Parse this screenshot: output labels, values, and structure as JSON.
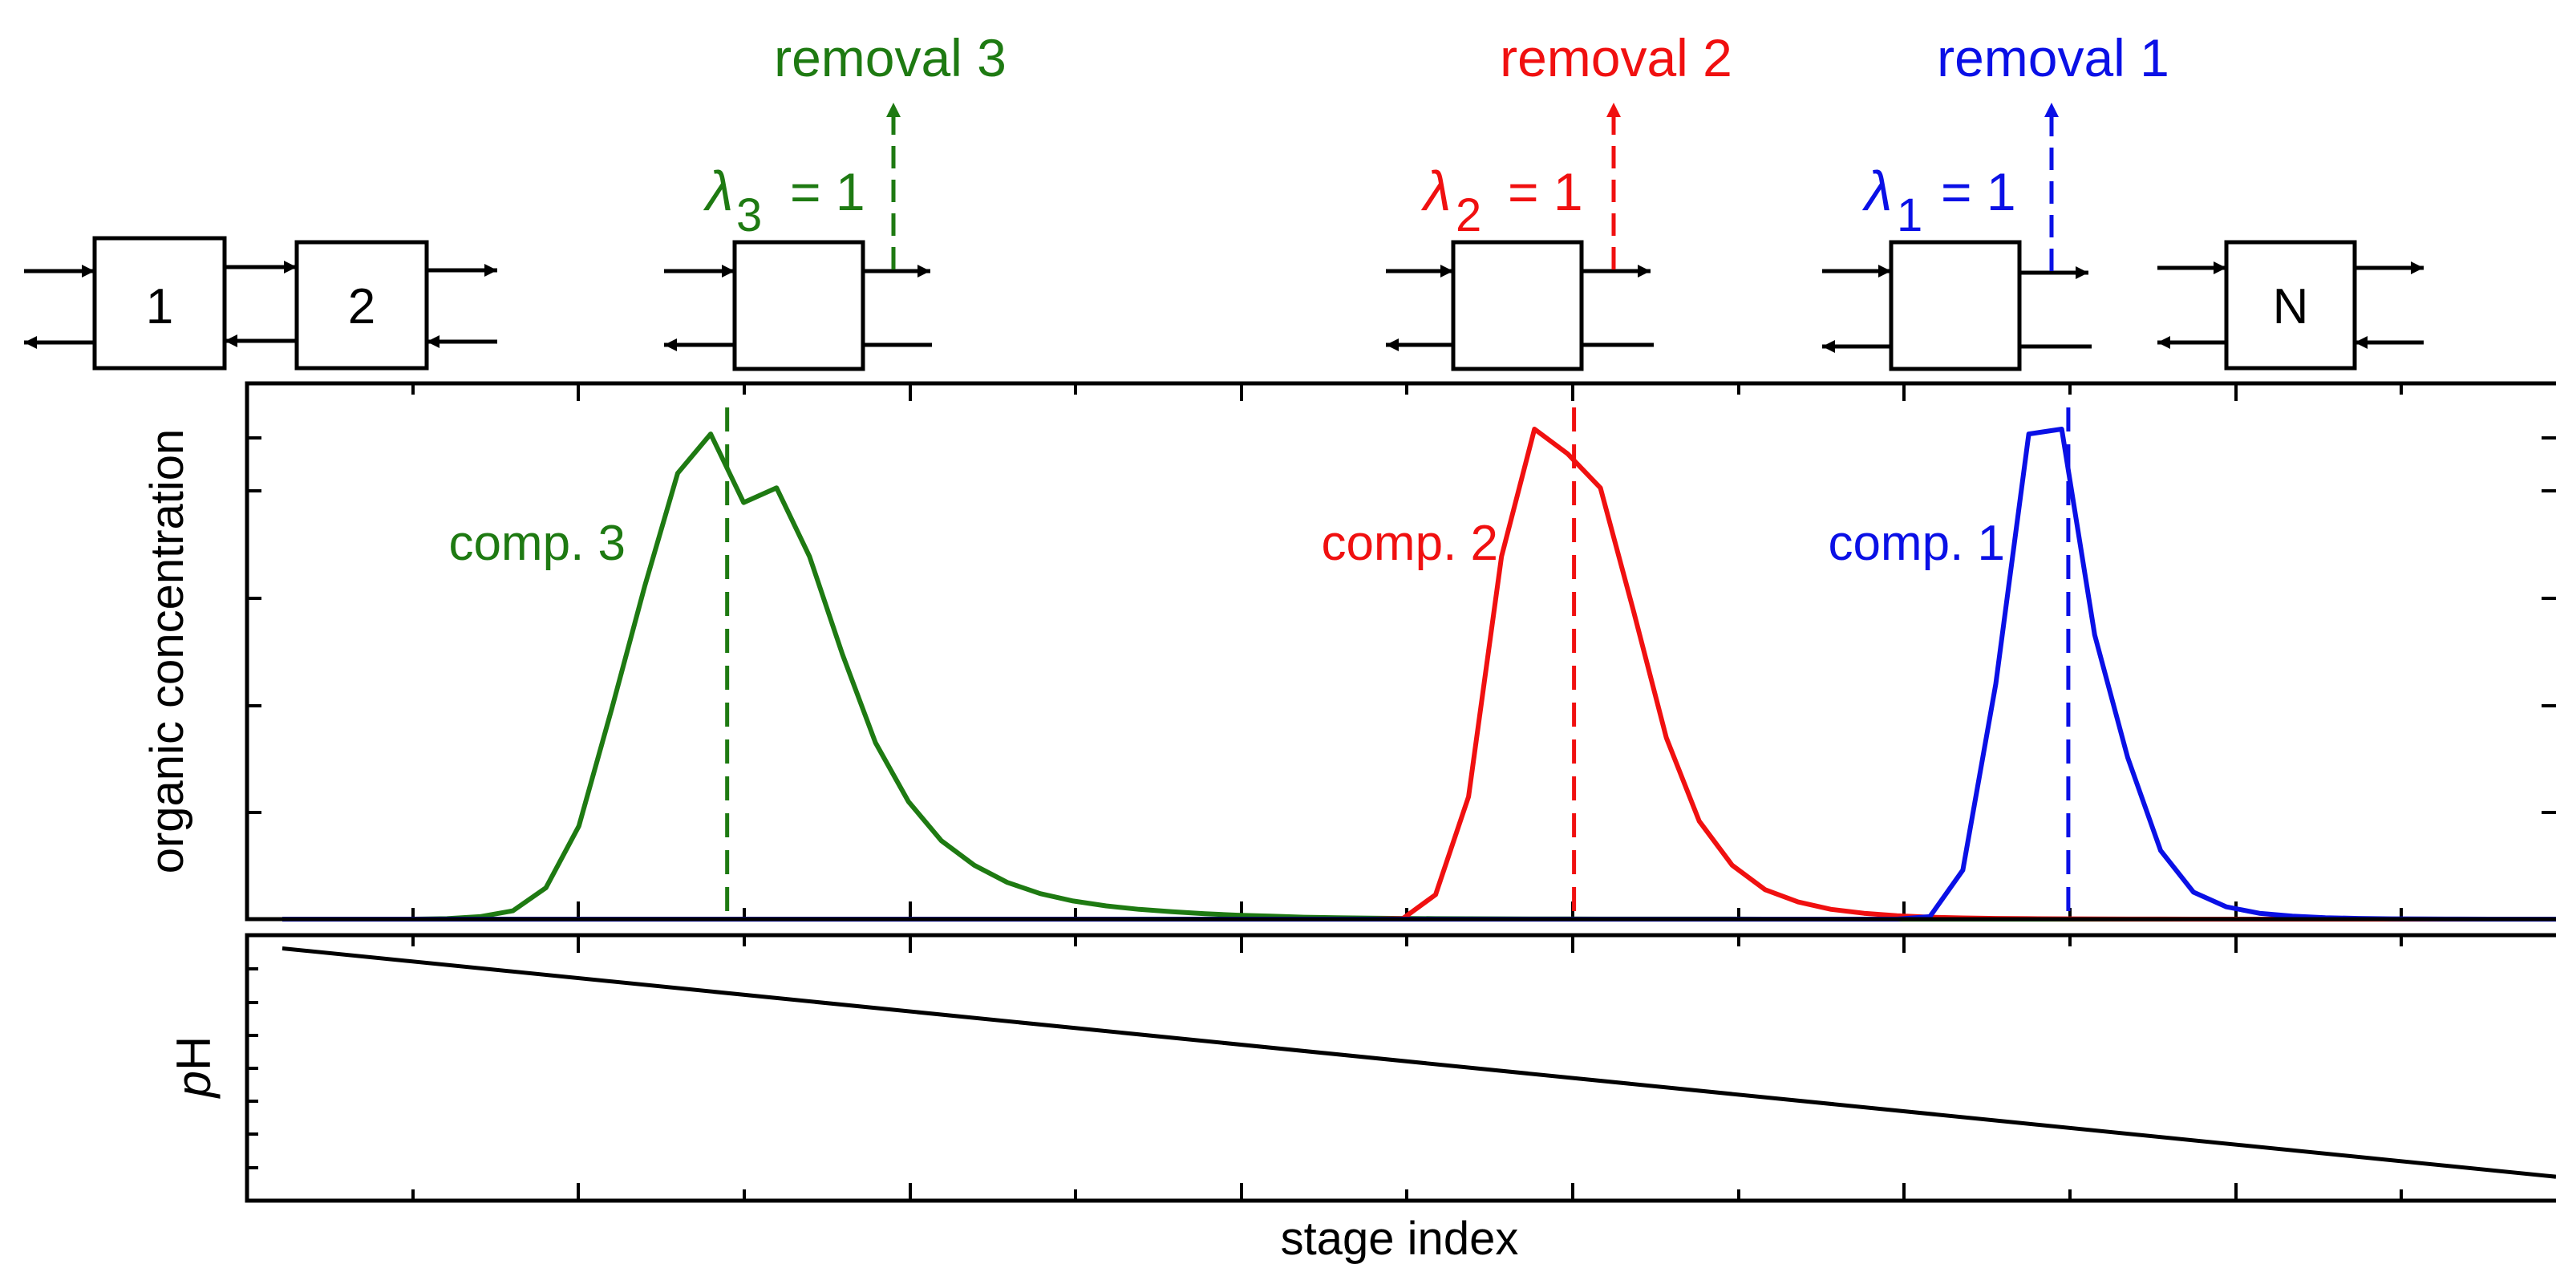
{
  "colors": {
    "comp1": "#0a10e6",
    "comp2": "#f01010",
    "comp3": "#1e7a12",
    "black": "#000000"
  },
  "stages": {
    "first": "1",
    "second": "2",
    "last": "N"
  },
  "removals": [
    {
      "label": "removal 3",
      "lambda_symbol": "λ",
      "lambda_sub": "3",
      "lambda_eq": "= 1"
    },
    {
      "label": "removal 2",
      "lambda_symbol": "λ",
      "lambda_sub": "2",
      "lambda_eq": "= 1"
    },
    {
      "label": "removal 1",
      "lambda_symbol": "λ",
      "lambda_sub": "1",
      "lambda_eq": "= 1"
    }
  ],
  "chart_data": [
    {
      "type": "line",
      "ylabel": "organic concentration",
      "xlabel": "",
      "series": [
        {
          "name": "comp. 3",
          "color": "#1e7a12",
          "x": [
            0,
            1,
            2,
            3,
            4,
            5,
            6,
            7,
            8,
            9,
            10,
            11,
            12,
            13,
            14,
            15,
            16,
            17,
            18,
            19,
            20,
            21,
            22,
            23,
            24,
            25,
            26,
            27,
            28,
            29,
            30,
            31,
            32,
            33,
            34,
            35,
            36,
            37,
            38,
            39,
            40,
            41,
            42,
            43,
            44,
            45,
            46,
            47,
            48,
            49,
            50,
            51,
            52,
            53,
            54,
            55,
            56,
            57,
            58,
            59,
            60,
            61,
            62,
            63,
            64,
            65,
            66,
            67,
            68,
            69
          ],
          "y": [
            0,
            0,
            0,
            0,
            0,
            0.001,
            0.005,
            0.017,
            0.064,
            0.19,
            0.43,
            0.68,
            0.91,
            0.99,
            0.85,
            0.88,
            0.74,
            0.54,
            0.36,
            0.24,
            0.16,
            0.11,
            0.075,
            0.052,
            0.037,
            0.027,
            0.02,
            0.015,
            0.011,
            0.008,
            0.006,
            0.004,
            0.003,
            0.002,
            0.0015,
            0.001,
            0.0008,
            0.0006,
            0.0004,
            0.0003,
            0.0002,
            0.0002,
            0.0001,
            0.0001,
            0.0001,
            0,
            0,
            0,
            0,
            0,
            0,
            0,
            0,
            0,
            0,
            0,
            0,
            0,
            0,
            0,
            0,
            0,
            0,
            0,
            0,
            0,
            0,
            0,
            0,
            0
          ],
          "removal_stage": 13.5
        },
        {
          "name": "comp. 2",
          "color": "#f01010",
          "x": [
            0,
            1,
            2,
            3,
            4,
            5,
            6,
            7,
            8,
            9,
            10,
            11,
            12,
            13,
            14,
            15,
            16,
            17,
            18,
            19,
            20,
            21,
            22,
            23,
            24,
            25,
            26,
            27,
            28,
            29,
            30,
            31,
            32,
            33,
            34,
            35,
            36,
            37,
            38,
            39,
            40,
            41,
            42,
            43,
            44,
            45,
            46,
            47,
            48,
            49,
            50,
            51,
            52,
            53,
            54,
            55,
            56,
            57,
            58,
            59,
            60,
            61,
            62,
            63,
            64,
            65,
            66,
            67,
            68,
            69
          ],
          "y": [
            0,
            0,
            0,
            0,
            0,
            0,
            0,
            0,
            0,
            0,
            0,
            0,
            0,
            0,
            0,
            0,
            0,
            0,
            0,
            0,
            0,
            0,
            0,
            0,
            0,
            0,
            0,
            0,
            0,
            0,
            0,
            0,
            0,
            0,
            0.001,
            0.05,
            0.25,
            0.74,
            1.0,
            0.95,
            0.88,
            0.63,
            0.37,
            0.2,
            0.11,
            0.06,
            0.035,
            0.02,
            0.012,
            0.007,
            0.004,
            0.0025,
            0.0015,
            0.001,
            0.0006,
            0.0004,
            0.0002,
            0.0001,
            0,
            0,
            0,
            0,
            0,
            0,
            0,
            0,
            0,
            0,
            0,
            0
          ],
          "removal_stage": 39.2
        },
        {
          "name": "comp. 1",
          "color": "#0a10e6",
          "x": [
            0,
            1,
            2,
            3,
            4,
            5,
            6,
            7,
            8,
            9,
            10,
            11,
            12,
            13,
            14,
            15,
            16,
            17,
            18,
            19,
            20,
            21,
            22,
            23,
            24,
            25,
            26,
            27,
            28,
            29,
            30,
            31,
            32,
            33,
            34,
            35,
            36,
            37,
            38,
            39,
            40,
            41,
            42,
            43,
            44,
            45,
            46,
            47,
            48,
            49,
            50,
            51,
            52,
            53,
            54,
            55,
            56,
            57,
            58,
            59,
            60,
            61,
            62,
            63,
            64,
            65,
            66,
            67,
            68,
            69
          ],
          "y": [
            0,
            0,
            0,
            0,
            0,
            0,
            0,
            0,
            0,
            0,
            0,
            0,
            0,
            0,
            0,
            0,
            0,
            0,
            0,
            0,
            0,
            0,
            0,
            0,
            0,
            0,
            0,
            0,
            0,
            0,
            0,
            0,
            0,
            0,
            0,
            0,
            0,
            0,
            0,
            0,
            0,
            0,
            0,
            0,
            0,
            0,
            0,
            0,
            0,
            0,
            0.005,
            0.1,
            0.48,
            0.99,
            1.0,
            0.58,
            0.33,
            0.14,
            0.055,
            0.025,
            0.012,
            0.006,
            0.003,
            0.0015,
            0.0007,
            0.0003,
            0.0001,
            0,
            0,
            0
          ],
          "removal_stage": 54.2
        }
      ]
    },
    {
      "type": "line",
      "ylabel": "pH",
      "ylabel_italic": "p",
      "ylabel_rest": "H",
      "xlabel": "stage index",
      "series": [
        {
          "name": "",
          "color": "#000000",
          "x": [
            0,
            69
          ],
          "y": [
            0.95,
            0.09
          ]
        }
      ]
    }
  ]
}
